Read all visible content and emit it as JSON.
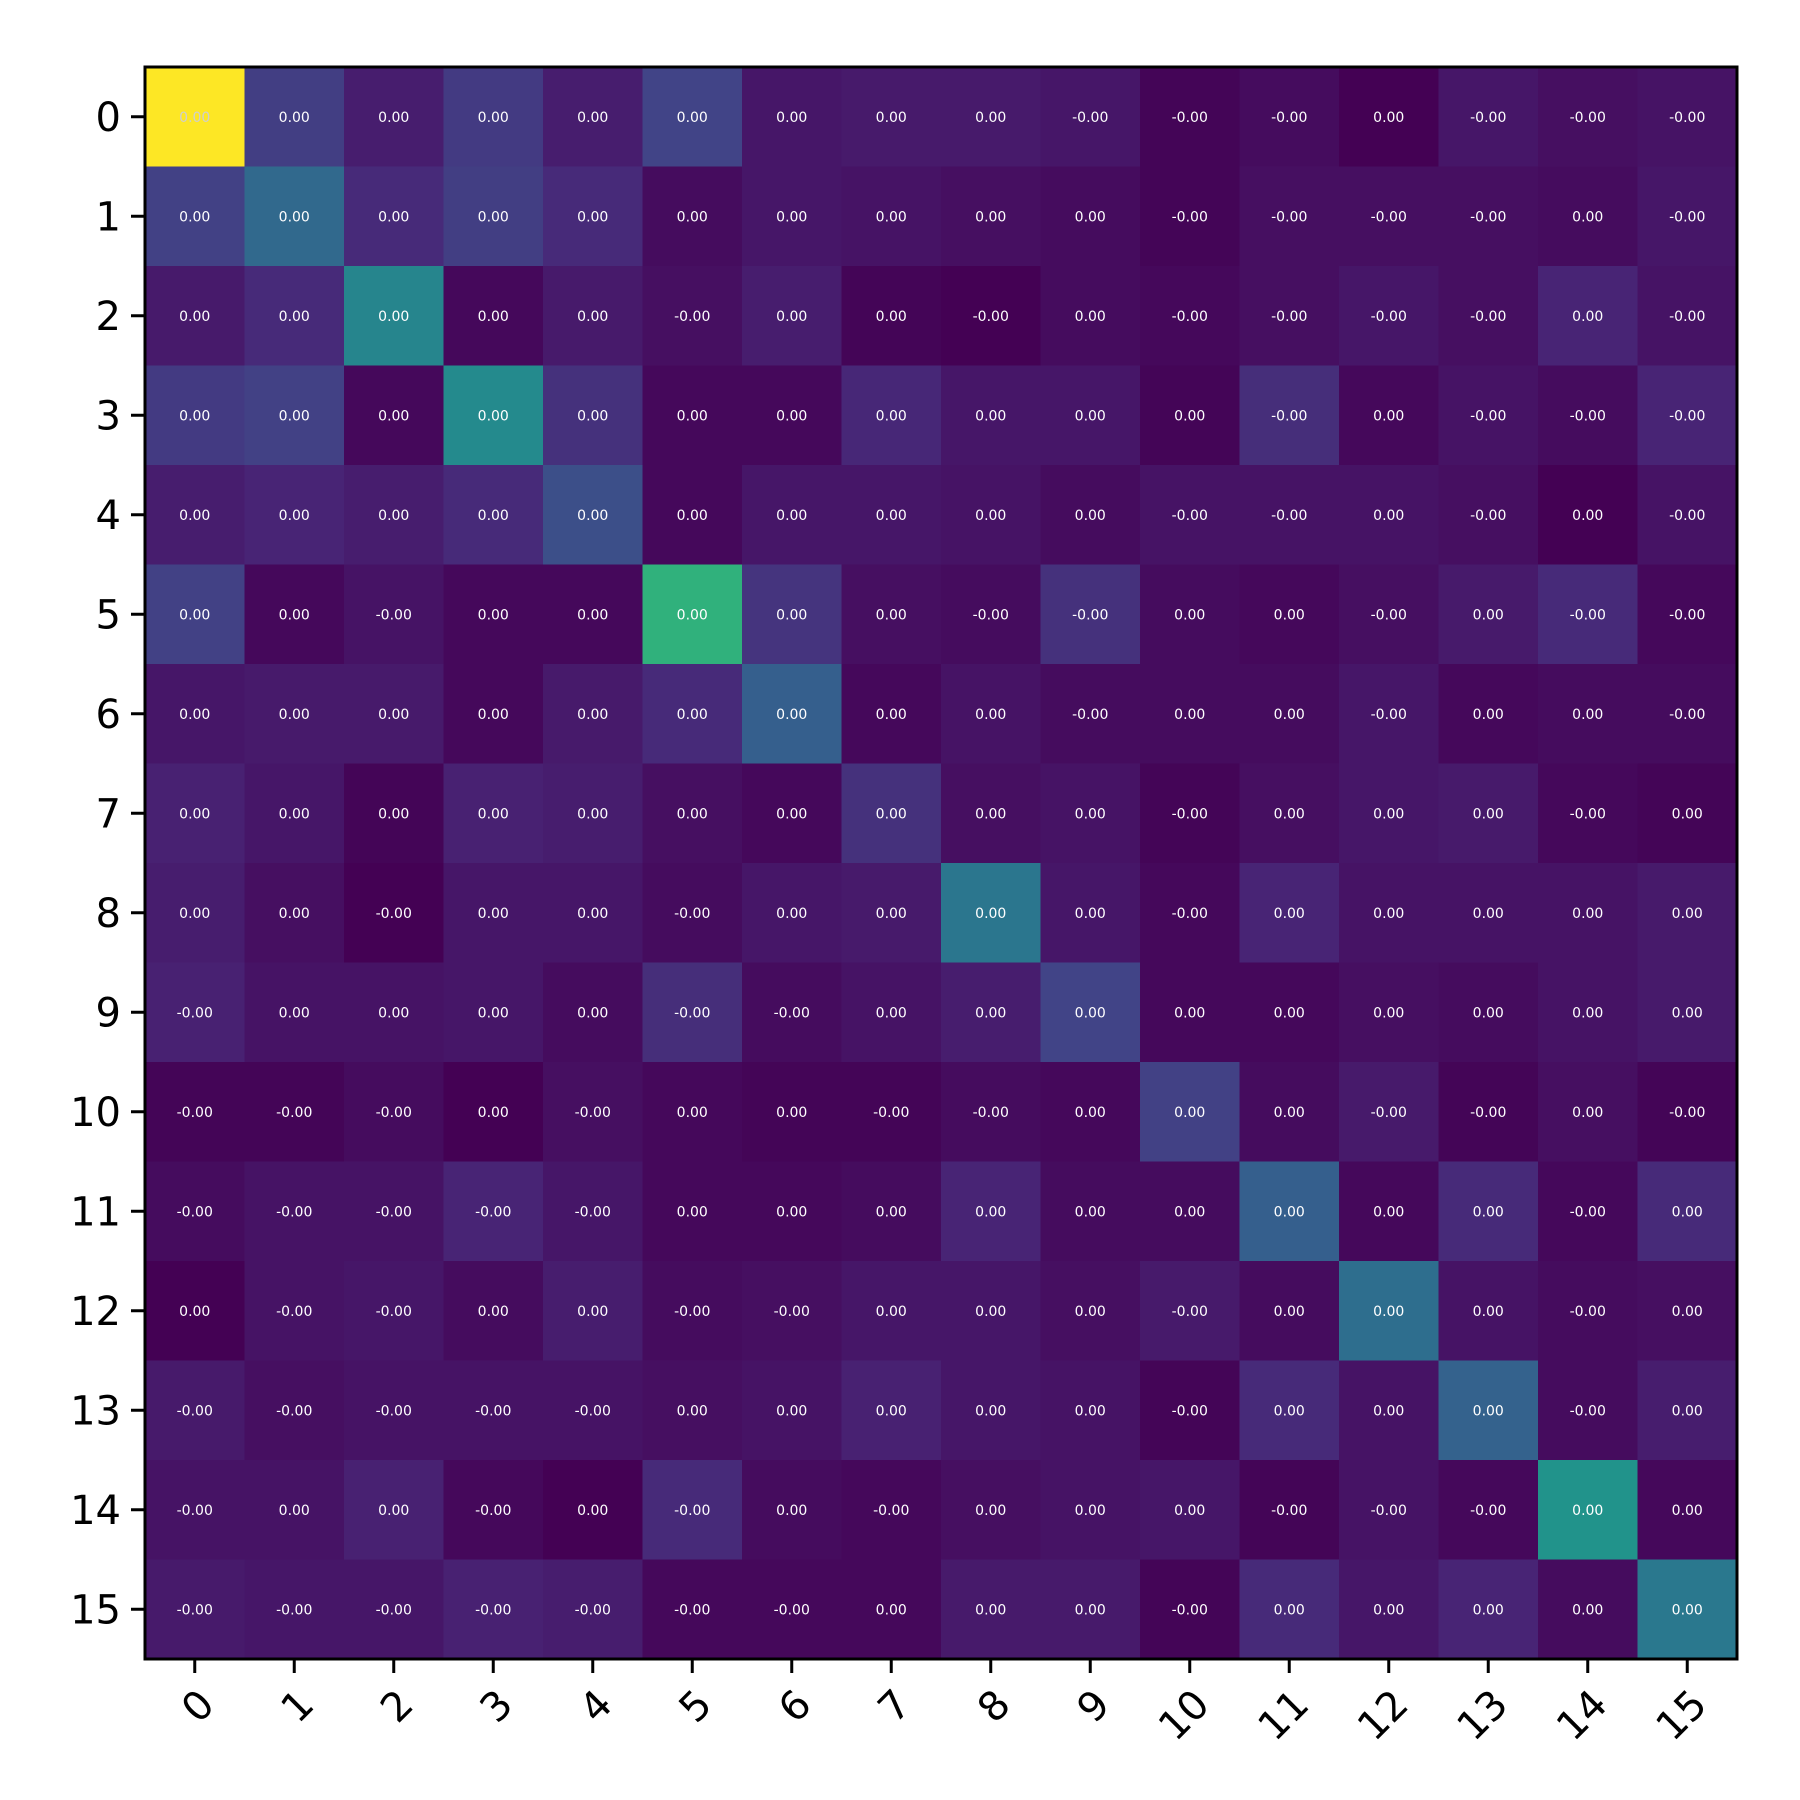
{
  "chart_data": {
    "type": "heatmap",
    "title": "",
    "xlabel": "",
    "ylabel": "",
    "colormap": "viridis",
    "grid": false,
    "legend": "none",
    "x_tick_labels": [
      "0",
      "1",
      "2",
      "3",
      "4",
      "5",
      "6",
      "7",
      "8",
      "9",
      "10",
      "11",
      "12",
      "13",
      "14",
      "15"
    ],
    "y_tick_labels": [
      "0",
      "1",
      "2",
      "3",
      "4",
      "5",
      "6",
      "7",
      "8",
      "9",
      "10",
      "11",
      "12",
      "13",
      "14",
      "15"
    ],
    "cell_labels": [
      [
        "0.00",
        "0.00",
        "0.00",
        "0.00",
        "0.00",
        "0.00",
        "0.00",
        "0.00",
        "0.00",
        "-0.00",
        "-0.00",
        "-0.00",
        "0.00",
        "-0.00",
        "-0.00",
        "-0.00"
      ],
      [
        "0.00",
        "0.00",
        "0.00",
        "0.00",
        "0.00",
        "0.00",
        "0.00",
        "0.00",
        "0.00",
        "0.00",
        "-0.00",
        "-0.00",
        "-0.00",
        "-0.00",
        "0.00",
        "-0.00"
      ],
      [
        "0.00",
        "0.00",
        "0.00",
        "0.00",
        "0.00",
        "-0.00",
        "0.00",
        "0.00",
        "-0.00",
        "0.00",
        "-0.00",
        "-0.00",
        "-0.00",
        "-0.00",
        "0.00",
        "-0.00"
      ],
      [
        "0.00",
        "0.00",
        "0.00",
        "0.00",
        "0.00",
        "0.00",
        "0.00",
        "0.00",
        "0.00",
        "0.00",
        "0.00",
        "-0.00",
        "0.00",
        "-0.00",
        "-0.00",
        "-0.00"
      ],
      [
        "0.00",
        "0.00",
        "0.00",
        "0.00",
        "0.00",
        "0.00",
        "0.00",
        "0.00",
        "0.00",
        "0.00",
        "-0.00",
        "-0.00",
        "0.00",
        "-0.00",
        "0.00",
        "-0.00"
      ],
      [
        "0.00",
        "0.00",
        "-0.00",
        "0.00",
        "0.00",
        "0.00",
        "0.00",
        "0.00",
        "-0.00",
        "-0.00",
        "0.00",
        "0.00",
        "-0.00",
        "0.00",
        "-0.00",
        "-0.00"
      ],
      [
        "0.00",
        "0.00",
        "0.00",
        "0.00",
        "0.00",
        "0.00",
        "0.00",
        "0.00",
        "0.00",
        "-0.00",
        "0.00",
        "0.00",
        "-0.00",
        "0.00",
        "0.00",
        "-0.00"
      ],
      [
        "0.00",
        "0.00",
        "0.00",
        "0.00",
        "0.00",
        "0.00",
        "0.00",
        "0.00",
        "0.00",
        "0.00",
        "-0.00",
        "0.00",
        "0.00",
        "0.00",
        "-0.00",
        "0.00"
      ],
      [
        "0.00",
        "0.00",
        "-0.00",
        "0.00",
        "0.00",
        "-0.00",
        "0.00",
        "0.00",
        "0.00",
        "0.00",
        "-0.00",
        "0.00",
        "0.00",
        "0.00",
        "0.00",
        "0.00"
      ],
      [
        "-0.00",
        "0.00",
        "0.00",
        "0.00",
        "0.00",
        "-0.00",
        "-0.00",
        "0.00",
        "0.00",
        "0.00",
        "0.00",
        "0.00",
        "0.00",
        "0.00",
        "0.00",
        "0.00"
      ],
      [
        "-0.00",
        "-0.00",
        "-0.00",
        "0.00",
        "-0.00",
        "0.00",
        "0.00",
        "-0.00",
        "-0.00",
        "0.00",
        "0.00",
        "0.00",
        "-0.00",
        "-0.00",
        "0.00",
        "-0.00"
      ],
      [
        "-0.00",
        "-0.00",
        "-0.00",
        "-0.00",
        "-0.00",
        "0.00",
        "0.00",
        "0.00",
        "0.00",
        "0.00",
        "0.00",
        "0.00",
        "0.00",
        "0.00",
        "-0.00",
        "0.00"
      ],
      [
        "0.00",
        "-0.00",
        "-0.00",
        "0.00",
        "0.00",
        "-0.00",
        "-0.00",
        "0.00",
        "0.00",
        "0.00",
        "-0.00",
        "0.00",
        "0.00",
        "0.00",
        "-0.00",
        "0.00"
      ],
      [
        "-0.00",
        "-0.00",
        "-0.00",
        "-0.00",
        "-0.00",
        "0.00",
        "0.00",
        "0.00",
        "0.00",
        "0.00",
        "-0.00",
        "0.00",
        "0.00",
        "0.00",
        "-0.00",
        "0.00"
      ],
      [
        "-0.00",
        "0.00",
        "0.00",
        "-0.00",
        "0.00",
        "-0.00",
        "0.00",
        "-0.00",
        "0.00",
        "0.00",
        "0.00",
        "-0.00",
        "-0.00",
        "-0.00",
        "0.00",
        "0.00"
      ],
      [
        "-0.00",
        "-0.00",
        "-0.00",
        "-0.00",
        "-0.00",
        "-0.00",
        "-0.00",
        "0.00",
        "0.00",
        "0.00",
        "-0.00",
        "0.00",
        "0.00",
        "0.00",
        "0.00",
        "0.00"
      ]
    ],
    "intensity": [
      [
        1.0,
        0.18,
        0.08,
        0.17,
        0.08,
        0.2,
        0.06,
        0.07,
        0.07,
        0.06,
        0.01,
        0.03,
        0.0,
        0.06,
        0.04,
        0.05
      ],
      [
        0.19,
        0.34,
        0.12,
        0.18,
        0.12,
        0.03,
        0.06,
        0.05,
        0.04,
        0.03,
        0.01,
        0.04,
        0.04,
        0.04,
        0.03,
        0.06
      ],
      [
        0.07,
        0.12,
        0.45,
        0.02,
        0.07,
        0.04,
        0.08,
        0.01,
        0.0,
        0.03,
        0.02,
        0.04,
        0.06,
        0.04,
        0.1,
        0.05
      ],
      [
        0.17,
        0.19,
        0.02,
        0.47,
        0.14,
        0.02,
        0.02,
        0.11,
        0.06,
        0.06,
        0.01,
        0.13,
        0.02,
        0.05,
        0.03,
        0.1
      ],
      [
        0.08,
        0.1,
        0.08,
        0.12,
        0.24,
        0.02,
        0.06,
        0.06,
        0.05,
        0.03,
        0.05,
        0.05,
        0.05,
        0.04,
        0.0,
        0.05
      ],
      [
        0.19,
        0.02,
        0.05,
        0.02,
        0.02,
        0.64,
        0.15,
        0.04,
        0.03,
        0.14,
        0.03,
        0.02,
        0.04,
        0.07,
        0.12,
        0.02
      ],
      [
        0.06,
        0.07,
        0.07,
        0.02,
        0.07,
        0.12,
        0.3,
        0.02,
        0.05,
        0.03,
        0.03,
        0.03,
        0.06,
        0.02,
        0.03,
        0.03
      ],
      [
        0.09,
        0.06,
        0.01,
        0.09,
        0.08,
        0.04,
        0.02,
        0.14,
        0.04,
        0.05,
        0.01,
        0.04,
        0.06,
        0.07,
        0.02,
        0.01
      ],
      [
        0.08,
        0.04,
        0.0,
        0.06,
        0.06,
        0.03,
        0.06,
        0.07,
        0.39,
        0.06,
        0.02,
        0.1,
        0.05,
        0.05,
        0.05,
        0.07
      ],
      [
        0.09,
        0.05,
        0.05,
        0.06,
        0.03,
        0.13,
        0.03,
        0.05,
        0.08,
        0.2,
        0.02,
        0.02,
        0.04,
        0.03,
        0.05,
        0.07
      ],
      [
        0.01,
        0.01,
        0.03,
        0.0,
        0.04,
        0.02,
        0.01,
        0.01,
        0.03,
        0.02,
        0.19,
        0.03,
        0.07,
        0.01,
        0.04,
        0.01
      ],
      [
        0.03,
        0.05,
        0.05,
        0.1,
        0.06,
        0.02,
        0.02,
        0.03,
        0.1,
        0.03,
        0.03,
        0.3,
        0.02,
        0.12,
        0.02,
        0.12
      ],
      [
        0.0,
        0.05,
        0.06,
        0.03,
        0.08,
        0.03,
        0.04,
        0.06,
        0.06,
        0.04,
        0.07,
        0.03,
        0.36,
        0.05,
        0.03,
        0.04
      ],
      [
        0.07,
        0.04,
        0.05,
        0.05,
        0.05,
        0.04,
        0.05,
        0.09,
        0.06,
        0.05,
        0.01,
        0.12,
        0.05,
        0.31,
        0.03,
        0.08
      ],
      [
        0.05,
        0.05,
        0.09,
        0.02,
        0.0,
        0.12,
        0.03,
        0.02,
        0.04,
        0.05,
        0.06,
        0.01,
        0.05,
        0.02,
        0.51,
        0.02
      ],
      [
        0.07,
        0.06,
        0.06,
        0.09,
        0.08,
        0.02,
        0.02,
        0.02,
        0.07,
        0.07,
        0.01,
        0.12,
        0.06,
        0.1,
        0.03,
        0.4
      ]
    ]
  }
}
